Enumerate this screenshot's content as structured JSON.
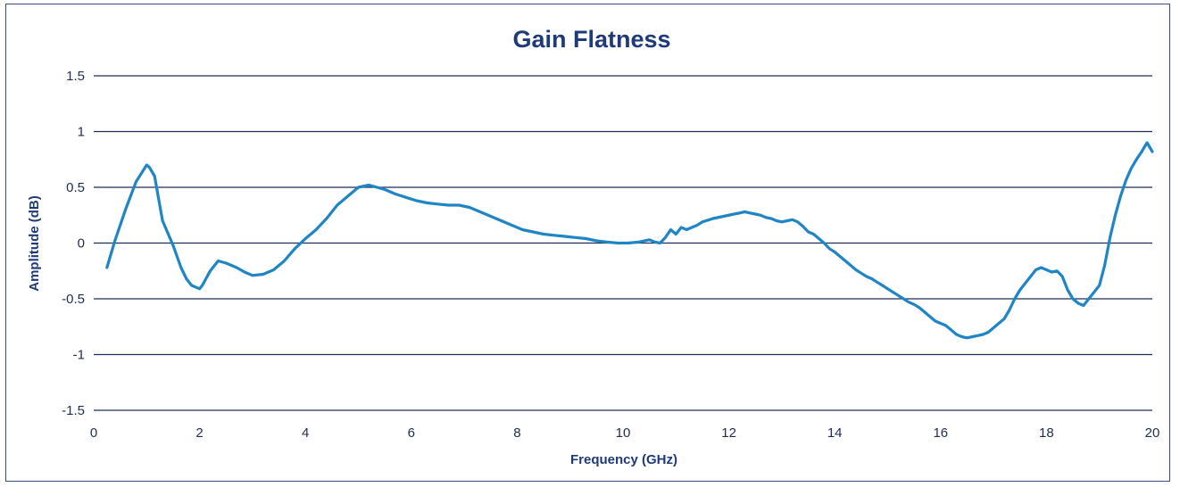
{
  "chart_data": {
    "type": "line",
    "title": "Gain Flatness",
    "xlabel": "Frequency (GHz)",
    "ylabel": "Amplitude (dB)",
    "xlim": [
      0,
      20
    ],
    "ylim": [
      -1.5,
      1.5
    ],
    "x_ticks": [
      0,
      2,
      4,
      6,
      8,
      10,
      12,
      14,
      16,
      18,
      20
    ],
    "y_ticks": [
      -1.5,
      -1,
      -0.5,
      0,
      0.5,
      1,
      1.5
    ],
    "x_tick_labels": [
      "0",
      "2",
      "4",
      "6",
      "8",
      "10",
      "12",
      "14",
      "16",
      "18",
      "20"
    ],
    "y_tick_labels": [
      "-1.5",
      "-1",
      "-0.5",
      "0",
      "0.5",
      "1",
      "1.5"
    ],
    "grid": "horizontal",
    "legend": "none",
    "colors": {
      "series": "#1f85c5",
      "grid": "#1f2f55",
      "title": "#1f3a78"
    },
    "series": [
      {
        "x": [
          0.25,
          0.4,
          0.6,
          0.8,
          1.0,
          1.05,
          1.15,
          1.3,
          1.5,
          1.65,
          1.75,
          1.85,
          2.0,
          2.05,
          2.2,
          2.35,
          2.5,
          2.7,
          2.85,
          3.0,
          3.2,
          3.4,
          3.6,
          3.8,
          4.0,
          4.2,
          4.4,
          4.6,
          4.8,
          5.0,
          5.2,
          5.35,
          5.5,
          5.7,
          5.9,
          6.1,
          6.3,
          6.5,
          6.7,
          6.9,
          7.1,
          7.3,
          7.5,
          7.7,
          7.9,
          8.1,
          8.3,
          8.5,
          8.7,
          8.9,
          9.1,
          9.3,
          9.5,
          9.7,
          9.9,
          10.1,
          10.3,
          10.5,
          10.6,
          10.7,
          10.8,
          10.9,
          11.0,
          11.1,
          11.2,
          11.3,
          11.4,
          11.5,
          11.7,
          11.9,
          12.1,
          12.2,
          12.3,
          12.4,
          12.5,
          12.6,
          12.7,
          12.8,
          12.9,
          13.0,
          13.1,
          13.2,
          13.3,
          13.4,
          13.5,
          13.6,
          13.7,
          13.8,
          13.9,
          14.0,
          14.1,
          14.2,
          14.3,
          14.4,
          14.5,
          14.6,
          14.7,
          14.8,
          14.9,
          15.0,
          15.1,
          15.2,
          15.3,
          15.4,
          15.5,
          15.6,
          15.7,
          15.8,
          15.9,
          16.0,
          16.1,
          16.2,
          16.3,
          16.4,
          16.5,
          16.6,
          16.7,
          16.8,
          16.9,
          17.0,
          17.1,
          17.2,
          17.3,
          17.4,
          17.5,
          17.6,
          17.7,
          17.8,
          17.9,
          18.0,
          18.1,
          18.2,
          18.3,
          18.4,
          18.5,
          18.6,
          18.7,
          18.8,
          18.9,
          19.0,
          19.1,
          19.2,
          19.3,
          19.4,
          19.5,
          19.6,
          19.7,
          19.8,
          19.9,
          20.0
        ],
        "y": [
          -0.22,
          0.02,
          0.3,
          0.55,
          0.7,
          0.68,
          0.6,
          0.2,
          -0.02,
          -0.22,
          -0.32,
          -0.38,
          -0.41,
          -0.38,
          -0.25,
          -0.16,
          -0.18,
          -0.22,
          -0.26,
          -0.29,
          -0.28,
          -0.24,
          -0.16,
          -0.05,
          0.04,
          0.12,
          0.22,
          0.34,
          0.42,
          0.5,
          0.52,
          0.5,
          0.48,
          0.44,
          0.41,
          0.38,
          0.36,
          0.35,
          0.34,
          0.34,
          0.32,
          0.28,
          0.24,
          0.2,
          0.16,
          0.12,
          0.1,
          0.08,
          0.07,
          0.06,
          0.05,
          0.04,
          0.02,
          0.01,
          0.0,
          0.0,
          0.01,
          0.03,
          0.01,
          0.0,
          0.05,
          0.12,
          0.08,
          0.14,
          0.12,
          0.14,
          0.16,
          0.19,
          0.22,
          0.24,
          0.26,
          0.27,
          0.28,
          0.27,
          0.26,
          0.25,
          0.23,
          0.22,
          0.2,
          0.19,
          0.2,
          0.21,
          0.19,
          0.15,
          0.1,
          0.08,
          0.04,
          0.0,
          -0.05,
          -0.08,
          -0.12,
          -0.16,
          -0.2,
          -0.24,
          -0.27,
          -0.3,
          -0.32,
          -0.35,
          -0.38,
          -0.41,
          -0.44,
          -0.47,
          -0.5,
          -0.53,
          -0.55,
          -0.58,
          -0.62,
          -0.66,
          -0.7,
          -0.72,
          -0.74,
          -0.78,
          -0.82,
          -0.84,
          -0.85,
          -0.84,
          -0.83,
          -0.82,
          -0.8,
          -0.76,
          -0.72,
          -0.68,
          -0.6,
          -0.5,
          -0.42,
          -0.36,
          -0.3,
          -0.24,
          -0.22,
          -0.24,
          -0.26,
          -0.25,
          -0.3,
          -0.42,
          -0.5,
          -0.54,
          -0.56,
          -0.5,
          -0.44,
          -0.38,
          -0.2,
          0.05,
          0.25,
          0.42,
          0.56,
          0.67,
          0.75,
          0.82,
          0.9,
          0.82
        ]
      }
    ]
  }
}
